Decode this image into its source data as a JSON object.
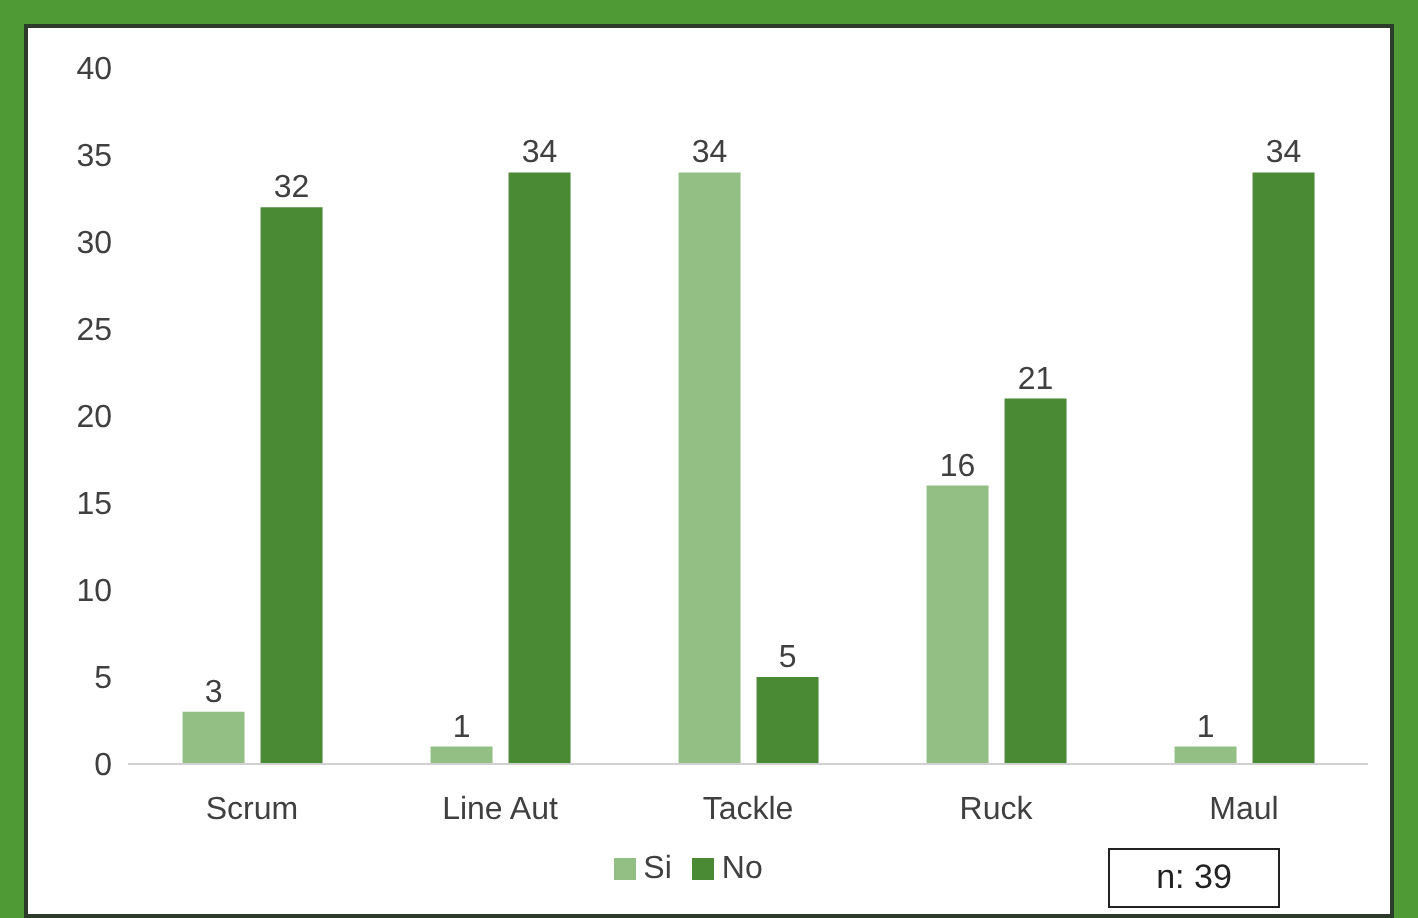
{
  "chart_data": {
    "type": "bar",
    "categories": [
      "Scrum",
      "Line Aut",
      "Tackle",
      "Ruck",
      "Maul"
    ],
    "series": [
      {
        "name": "Si",
        "color": "#93bf85",
        "values": [
          3,
          1,
          34,
          16,
          1
        ]
      },
      {
        "name": "No",
        "color": "#4a8a35",
        "values": [
          32,
          34,
          5,
          21,
          34
        ]
      }
    ],
    "ylim": [
      0,
      40
    ],
    "yticks": [
      0,
      5,
      10,
      15,
      20,
      25,
      30,
      35,
      40
    ],
    "grid": false,
    "legend": "bottom",
    "data_labels": true,
    "annotations": [
      "n: 39"
    ]
  }
}
